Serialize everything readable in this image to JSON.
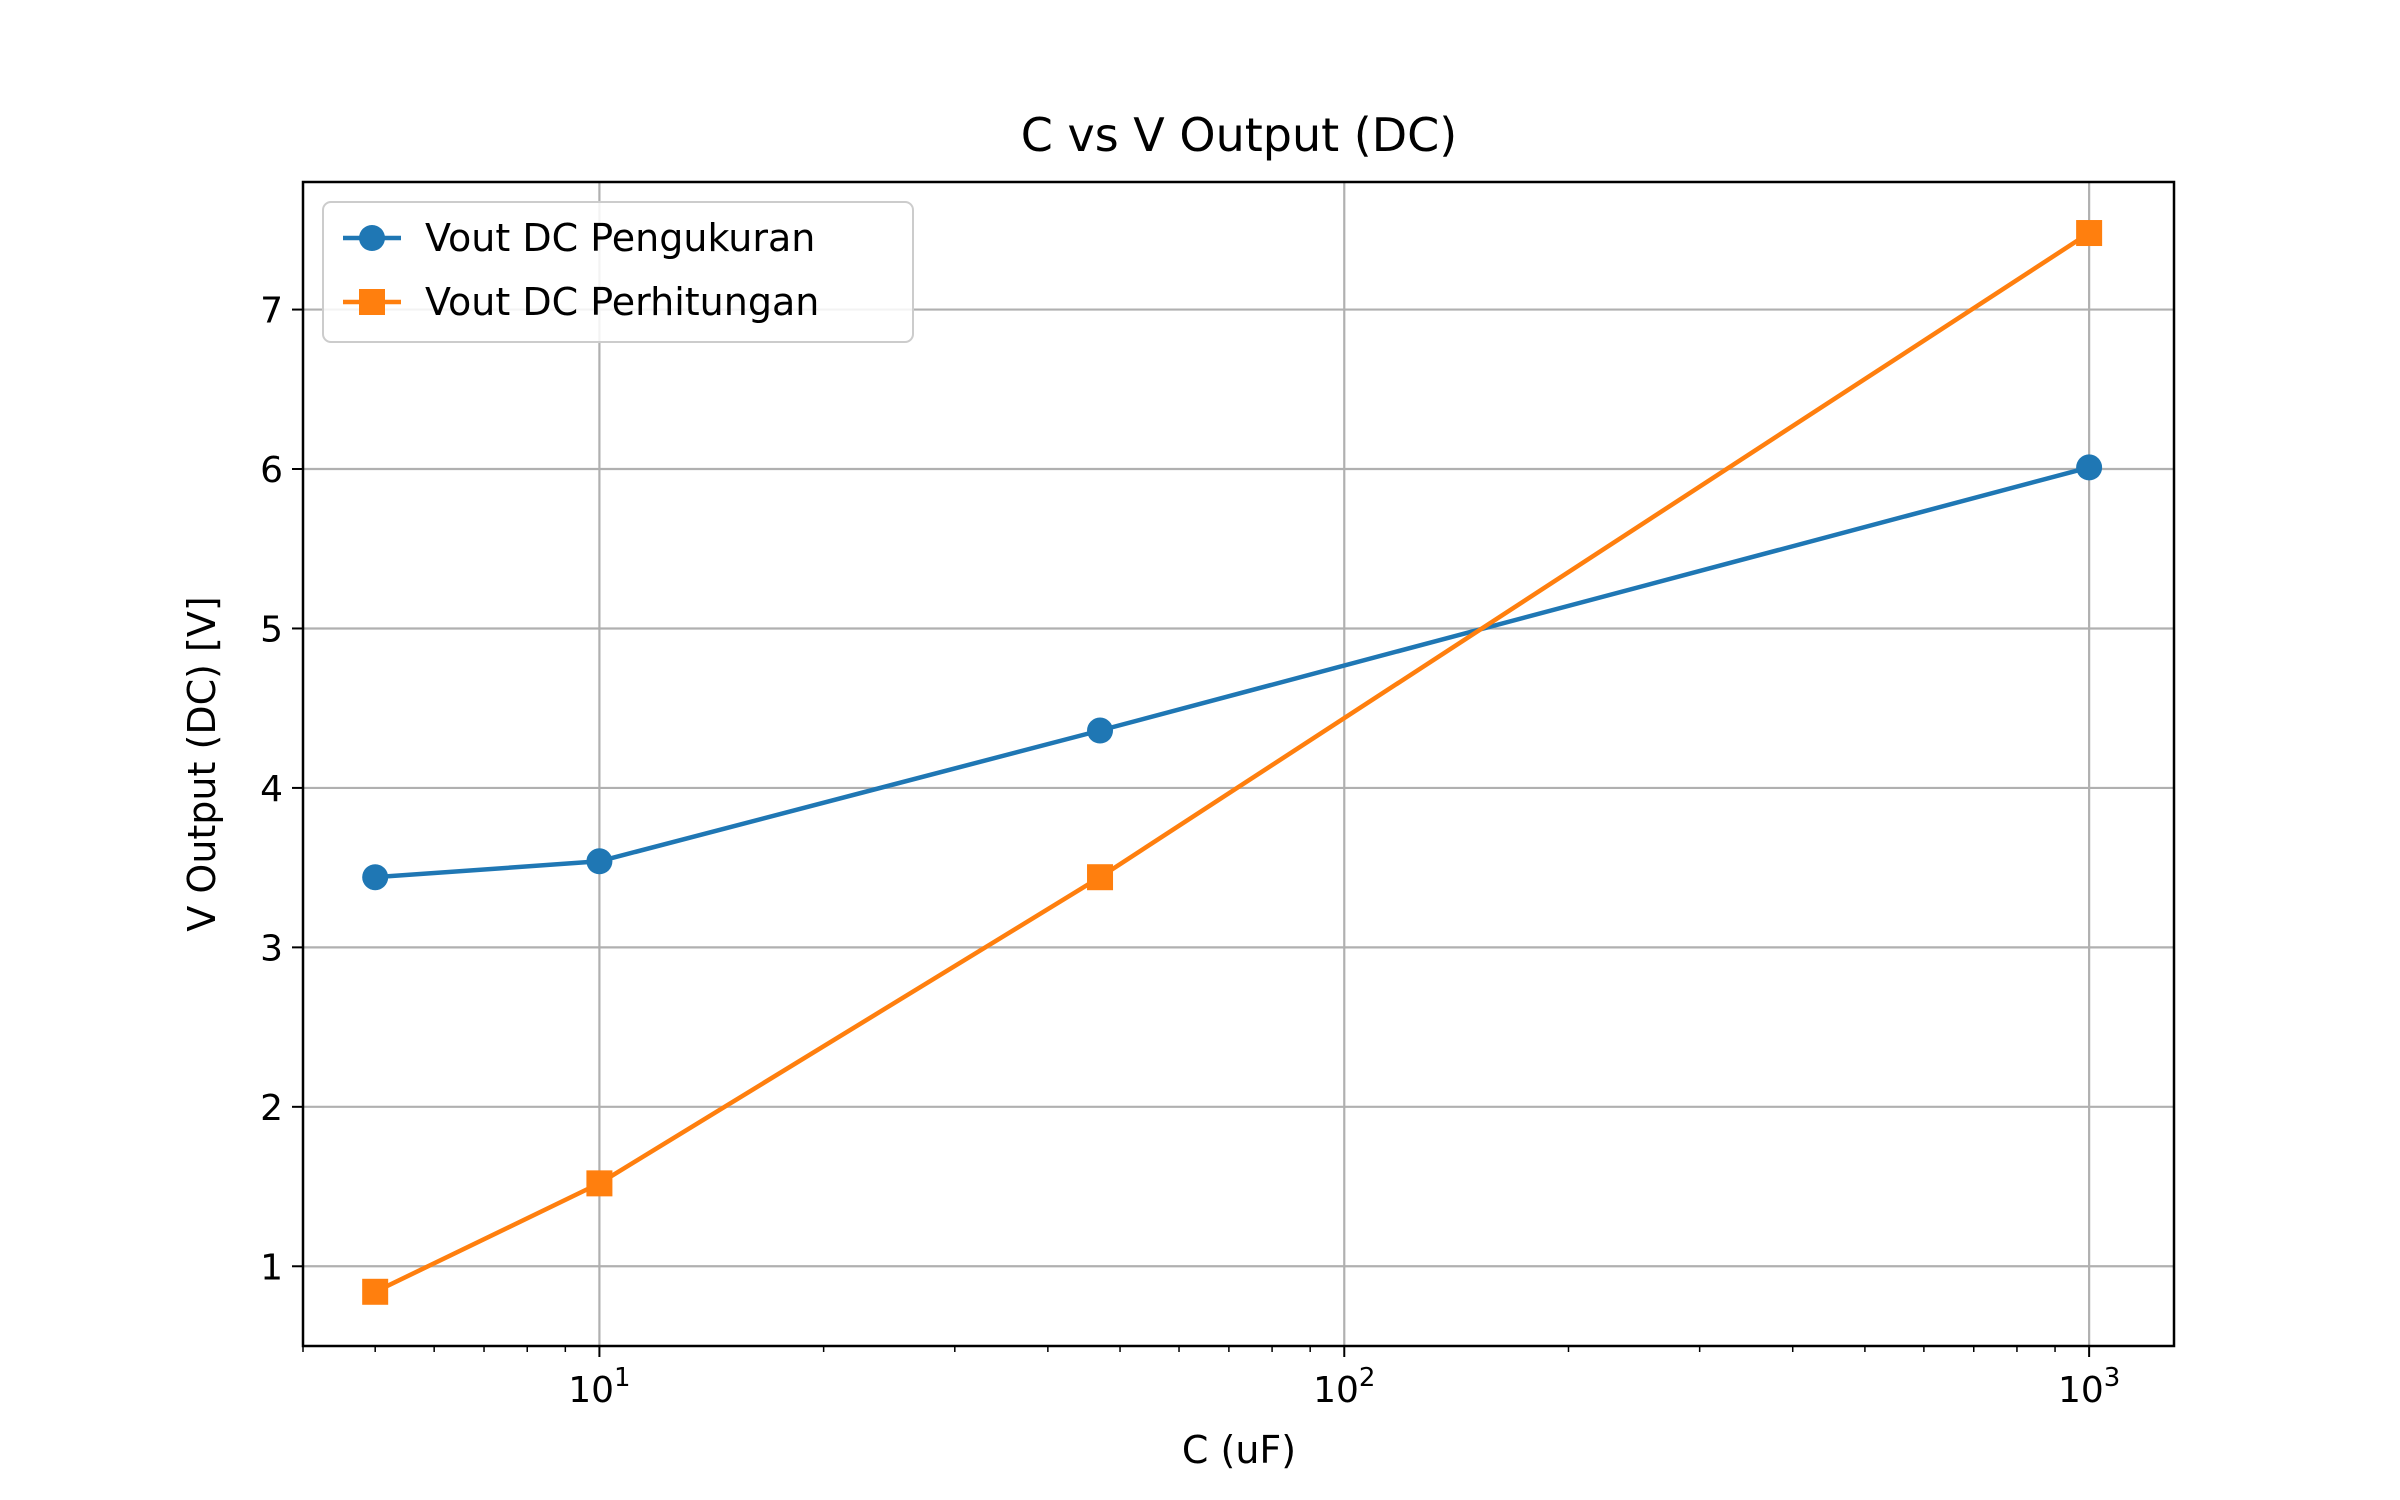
{
  "chart_data": {
    "type": "line",
    "title": "C vs V Output (DC)",
    "xlabel": "C (uF)",
    "ylabel": "V Output (DC) [V]",
    "xscale": "log",
    "xlim": [
      4.0,
      1300
    ],
    "ylim": [
      0.5,
      7.8
    ],
    "grid": true,
    "legend": "top-left",
    "x_ticks": [
      {
        "value": 10,
        "base": "10",
        "exp": "1"
      },
      {
        "value": 100,
        "base": "10",
        "exp": "2"
      },
      {
        "value": 1000,
        "base": "10",
        "exp": "3"
      }
    ],
    "y_ticks": [
      "1",
      "2",
      "3",
      "4",
      "5",
      "6",
      "7"
    ],
    "series": [
      {
        "name": "Vout DC Pengukuran",
        "color": "#1f77b4",
        "marker": "circle",
        "x": [
          5,
          10,
          47,
          1000
        ],
        "y": [
          3.44,
          3.54,
          4.36,
          6.01
        ]
      },
      {
        "name": "Vout DC Perhitungan",
        "color": "#ff7f0e",
        "marker": "square",
        "x": [
          5,
          10,
          47,
          1000
        ],
        "y": [
          0.84,
          1.52,
          3.44,
          7.48
        ]
      }
    ]
  }
}
